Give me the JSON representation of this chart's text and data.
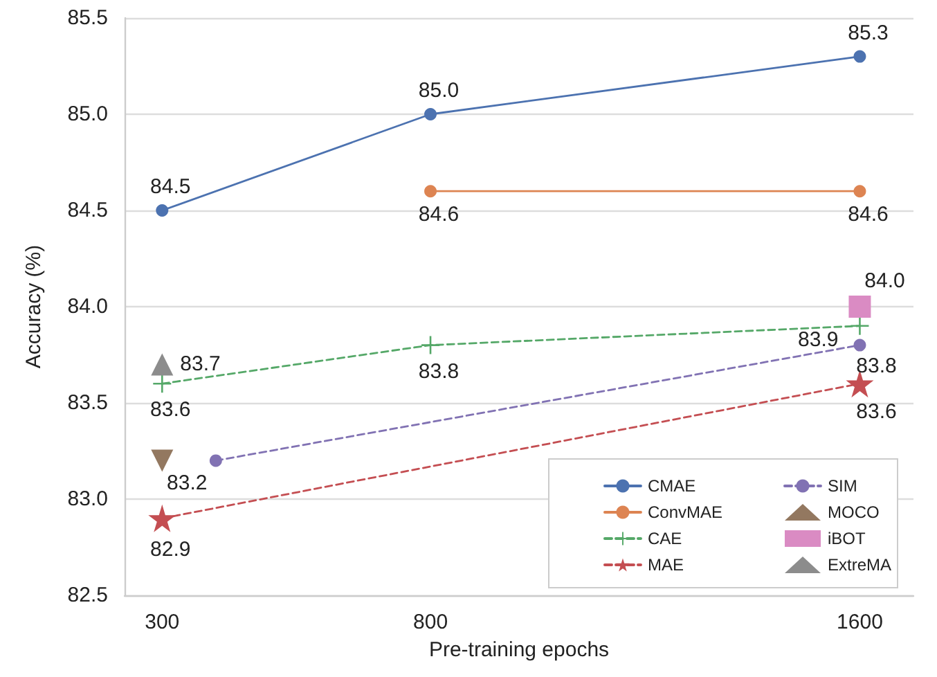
{
  "chart_data": {
    "type": "line",
    "xlabel": "Pre-training epochs",
    "ylabel": "Accuracy (%)",
    "xlim": [
      230,
      1700
    ],
    "xticks": [
      300,
      800,
      1600
    ],
    "ylim": [
      82.5,
      85.5
    ],
    "yticks": [
      {
        "value": 82.5,
        "label": "82.5"
      },
      {
        "value": 83,
        "label": "83.0"
      },
      {
        "value": 83.5,
        "label": "83.5"
      },
      {
        "value": 84,
        "label": "84.0"
      },
      {
        "value": 84.5,
        "label": "84.5"
      },
      {
        "value": 85,
        "label": "85.0"
      },
      {
        "value": 85.5,
        "label": "85.5"
      }
    ],
    "grid": "y",
    "legend": "bottom right",
    "series": [
      {
        "name": "CMAE",
        "color": "#4c72b0",
        "marker": "circle",
        "line_style": "solid",
        "x": [
          300,
          800,
          1600
        ],
        "values": [
          84.5,
          85.0,
          85.3
        ],
        "value_labels": [
          "84.5",
          "85.0",
          "85.3"
        ]
      },
      {
        "name": "ConvMAE",
        "color": "#dd8452",
        "marker": "circle",
        "line_style": "solid",
        "x": [
          800,
          1600
        ],
        "values": [
          84.6,
          84.6
        ],
        "value_labels": [
          "84.6",
          "84.6"
        ]
      },
      {
        "name": "CAE",
        "color": "#55a868",
        "marker": "cross",
        "line_style": "dashed",
        "x": [
          300,
          800,
          1600
        ],
        "values": [
          83.6,
          83.8,
          83.9
        ],
        "value_labels": [
          "83.6",
          "83.8",
          "83.9"
        ]
      },
      {
        "name": "MAE",
        "color": "#c44e52",
        "marker": "star",
        "line_style": "dashed",
        "x": [
          300,
          1600
        ],
        "values": [
          82.9,
          83.6
        ],
        "value_labels": [
          "82.9",
          "83.6"
        ]
      },
      {
        "name": "SIM",
        "color": "#8172b3",
        "marker": "circle",
        "line_style": "dashed",
        "x": [
          400,
          1600
        ],
        "values": [
          83.2,
          83.8
        ],
        "value_labels": [
          null,
          "83.8"
        ]
      },
      {
        "name": "MOCO",
        "type": "scatter",
        "color": "#937860",
        "marker": "triangle",
        "x": [
          300
        ],
        "values": [
          83.2
        ],
        "value_labels": [
          "83.2"
        ]
      },
      {
        "name": "iBOT",
        "type": "scatter",
        "color": "#da8bc3",
        "marker": "square",
        "x": [
          1600
        ],
        "values": [
          84.0
        ],
        "value_labels": [
          "84.0"
        ]
      },
      {
        "name": "ExtreMA",
        "type": "scatter",
        "color": "#8c8c8c",
        "marker": "triangle",
        "x": [
          300
        ],
        "values": [
          83.7
        ],
        "value_labels": [
          "83.7"
        ]
      }
    ]
  }
}
